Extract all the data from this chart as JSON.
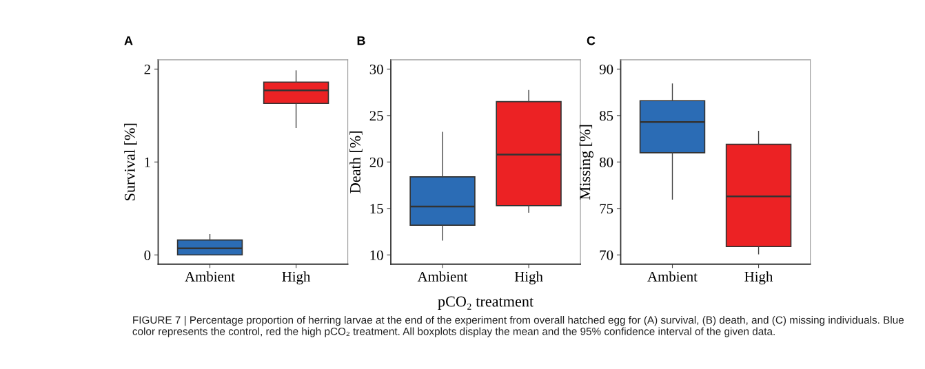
{
  "chart_data": [
    {
      "type": "box",
      "title": "A",
      "ylabel": "Survival [%]",
      "categories": [
        "Ambient",
        "High"
      ],
      "colors": [
        "#2b6cb5",
        "#ec2224"
      ],
      "ylim": [
        -0.1,
        2.1
      ],
      "yticks": [
        0,
        1,
        2
      ],
      "grid": false,
      "legend": false,
      "boxes": [
        {
          "low": 0,
          "q1": 0,
          "median": 0.07,
          "q3": 0.16,
          "high": 0.22
        },
        {
          "low": 1.37,
          "q1": 1.63,
          "median": 1.77,
          "q3": 1.86,
          "high": 1.98
        }
      ],
      "annotations": [
        "FIGURE 7 | Percentage proportion of herring larvae at the end of the experiment from overall hatched egg for (A) survival, (B) death, and (C) missing individuals. Blue color represents the control, red the high pCO₂ treatment. All boxplots display the mean and the 95% confidence interval of the given data."
      ]
    },
    {
      "type": "box",
      "title": "B",
      "ylabel": "Death [%]",
      "xlabel": "pCO₂ treatment",
      "categories": [
        "Ambient",
        "High"
      ],
      "colors": [
        "#2b6cb5",
        "#ec2224"
      ],
      "ylim": [
        9,
        31
      ],
      "yticks": [
        10,
        15,
        20,
        25,
        30
      ],
      "grid": false,
      "legend": false,
      "boxes": [
        {
          "low": 11.6,
          "q1": 13.2,
          "median": 15.2,
          "q3": 18.4,
          "high": 23.2
        },
        {
          "low": 14.6,
          "q1": 15.3,
          "median": 20.8,
          "q3": 26.5,
          "high": 27.7
        }
      ]
    },
    {
      "type": "box",
      "title": "C",
      "ylabel": "Missing [%]",
      "categories": [
        "Ambient",
        "High"
      ],
      "colors": [
        "#2b6cb5",
        "#ec2224"
      ],
      "ylim": [
        69,
        91
      ],
      "yticks": [
        70,
        75,
        80,
        85,
        90
      ],
      "grid": false,
      "legend": false,
      "boxes": [
        {
          "low": 76.0,
          "q1": 81.0,
          "median": 84.3,
          "q3": 86.6,
          "high": 88.4
        },
        {
          "low": 70.1,
          "q1": 70.9,
          "median": 76.3,
          "q3": 81.9,
          "high": 83.3
        }
      ]
    }
  ]
}
